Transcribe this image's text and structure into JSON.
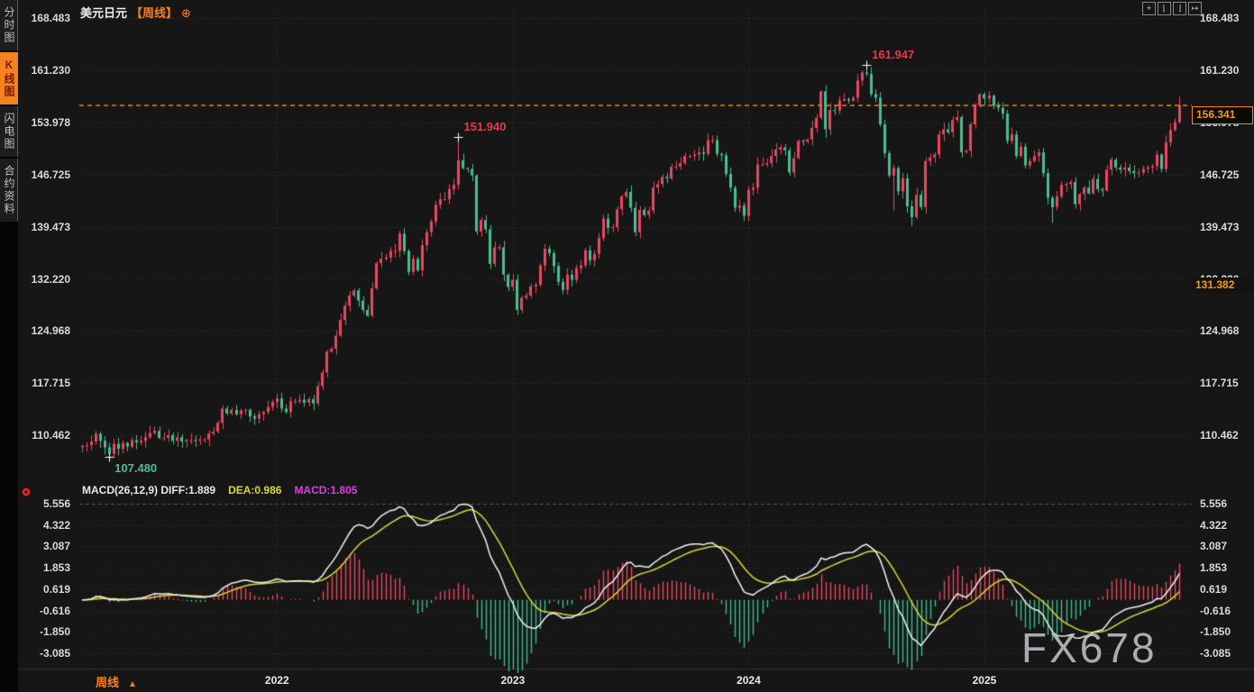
{
  "header": {
    "symbol": "美元日元",
    "period": "【周线】",
    "add_icon": "⊕"
  },
  "sidebar": {
    "tabs": [
      {
        "label": "分时图",
        "active": false
      },
      {
        "label": "K线图",
        "active": true
      },
      {
        "label": "闪电图",
        "active": false
      },
      {
        "label": "合约资料",
        "active": false
      }
    ]
  },
  "toolbar": {
    "icons": [
      {
        "name": "crosshair-icon",
        "glyph": "+"
      },
      {
        "name": "axis-left-icon",
        "glyph": "⌊"
      },
      {
        "name": "axis-right-icon",
        "glyph": "⌋"
      },
      {
        "name": "detach-window-icon",
        "glyph": "↦"
      }
    ]
  },
  "price_pane": {
    "current_price": {
      "value": "156.341"
    },
    "secondary_price": {
      "value": "131.382"
    },
    "annotations": [
      {
        "text": "151.940",
        "week": 83,
        "price": 151.94,
        "color": "#e4394f",
        "position": "above"
      },
      {
        "text": "161.947",
        "week": 173,
        "price": 161.947,
        "color": "#e4394f",
        "position": "above"
      },
      {
        "text": "107.480",
        "week": 6,
        "price": 107.48,
        "color": "#4bbd92",
        "position": "below"
      }
    ]
  },
  "macd_pane": {
    "header": {
      "formula": "MACD(26,12,9)",
      "diff_label": "DIFF:1.889",
      "dea_label": "DEA:0.986",
      "macd_label": "MACD:1.805"
    }
  },
  "x_axis": {
    "years": [
      {
        "label": "2022",
        "week": 43
      },
      {
        "label": "2023",
        "week": 95
      },
      {
        "label": "2024",
        "week": 147
      },
      {
        "label": "2025",
        "week": 199
      }
    ]
  },
  "footer": {
    "period_label": "周线",
    "arrow": "▲"
  },
  "watermark": "FX678",
  "colors": {
    "up": "#e8495e",
    "down": "#4bbd92",
    "accent": "#f5821f",
    "grid": "#2d2d2d",
    "grid_bright": "#555555",
    "diff_line": "#f2f2f2",
    "dea_line": "#d8d837",
    "hist_up": "#e8495e",
    "hist_down": "#3fbd8f",
    "cross_marker": "#ffffff"
  },
  "chart_data": {
    "type": "candlestick+macd",
    "title": "美元日元 周线 (USD/JPY weekly)",
    "price_tick_values": [
      168.483,
      161.23,
      153.978,
      146.725,
      139.473,
      132.22,
      124.968,
      117.715,
      110.462
    ],
    "macd_tick_values": [
      5.556,
      4.322,
      3.087,
      1.853,
      0.619,
      -0.616,
      -1.85,
      -3.085
    ],
    "current_price": 156.341,
    "secondary_price": 131.382,
    "high_marker": 161.947,
    "low_marker": 107.48,
    "mid_marker": 151.94,
    "macd": {
      "fast": 12,
      "slow": 26,
      "signal": 9,
      "last_diff": 1.889,
      "last_dea": 0.986,
      "last_macd": 1.805
    },
    "open_first": 108.8,
    "closes": [
      109.0,
      109.1,
      109.6,
      110.7,
      109.7,
      108.8,
      107.9,
      109.3,
      108.6,
      109.4,
      108.9,
      109.8,
      109.5,
      109.7,
      110.2,
      110.8,
      111.1,
      110.1,
      110.1,
      110.5,
      109.7,
      110.2,
      109.6,
      109.8,
      109.8,
      109.7,
      109.9,
      109.9,
      110.7,
      111.0,
      112.2,
      114.2,
      113.5,
      114.0,
      113.4,
      113.9,
      114.0,
      113.1,
      112.8,
      113.4,
      113.7,
      114.4,
      115.1,
      115.6,
      114.2,
      113.7,
      115.2,
      115.2,
      115.4,
      115.0,
      115.5,
      114.9,
      117.3,
      119.2,
      122.1,
      122.5,
      124.3,
      126.5,
      128.5,
      129.9,
      130.6,
      129.2,
      127.9,
      127.1,
      130.9,
      134.4,
      135.0,
      135.2,
      136.1,
      136.1,
      138.5,
      136.1,
      133.2,
      135.0,
      133.4,
      136.9,
      138.7,
      140.2,
      142.5,
      143.3,
      143.3,
      144.7,
      145.3,
      148.7,
      147.6,
      147.5,
      146.6,
      138.8,
      140.4,
      139.1,
      134.3,
      136.6,
      136.6,
      132.8,
      131.1,
      132.1,
      127.9,
      129.6,
      129.9,
      131.2,
      131.4,
      134.1,
      136.4,
      135.8,
      134.0,
      131.8,
      130.7,
      132.8,
      132.1,
      133.7,
      134.1,
      136.2,
      134.8,
      135.7,
      137.9,
      140.6,
      139.3,
      139.4,
      141.9,
      143.7,
      144.3,
      142.1,
      138.7,
      141.8,
      141.1,
      141.7,
      144.9,
      145.4,
      146.4,
      146.2,
      147.8,
      147.8,
      148.3,
      149.3,
      149.3,
      149.5,
      149.8,
      149.6,
      151.5,
      151.5,
      149.6,
      149.4,
      146.8,
      144.9,
      142.1,
      142.4,
      141.0,
      144.6,
      144.9,
      148.1,
      148.1,
      148.3,
      149.3,
      150.2,
      150.5,
      150.1,
      147.0,
      149.0,
      151.4,
      151.3,
      151.6,
      153.2,
      154.6,
      158.3,
      153.0,
      155.7,
      155.6,
      157.0,
      157.2,
      157.0,
      157.4,
      159.8,
      160.9,
      160.7,
      157.9,
      157.4,
      153.7,
      149.7,
      146.6,
      147.6,
      144.4,
      146.2,
      142.3,
      140.8,
      143.9,
      142.2,
      148.6,
      149.1,
      149.5,
      152.3,
      153.0,
      152.6,
      154.3,
      154.7,
      149.8,
      150.0,
      153.7,
      156.3,
      157.9,
      157.3,
      157.7,
      156.3,
      156.0,
      155.2,
      151.4,
      152.3,
      149.3,
      150.6,
      148.0,
      148.6,
      149.3,
      149.8,
      146.9,
      143.5,
      142.2,
      143.7,
      145.3,
      145.4,
      145.7,
      142.6,
      144.0,
      144.9,
      144.1,
      146.1,
      144.7,
      144.5,
      147.4,
      148.8,
      147.7,
      147.4,
      147.7,
      147.2,
      146.9,
      147.0,
      147.5,
      147.7,
      147.9,
      149.5,
      147.5,
      151.2,
      152.9,
      154.0,
      156.341
    ],
    "wick_overrides": {
      "6": {
        "low": 107.48
      },
      "83": {
        "high": 151.94
      },
      "96": {
        "low": 127.2
      },
      "163": {
        "high": 158.44
      },
      "164": {
        "low": 151.86
      },
      "173": {
        "high": 161.947
      },
      "179": {
        "low": 141.7
      },
      "183": {
        "low": 139.58
      },
      "214": {
        "low": 140.0
      },
      "242": {
        "high": 157.55
      }
    }
  }
}
